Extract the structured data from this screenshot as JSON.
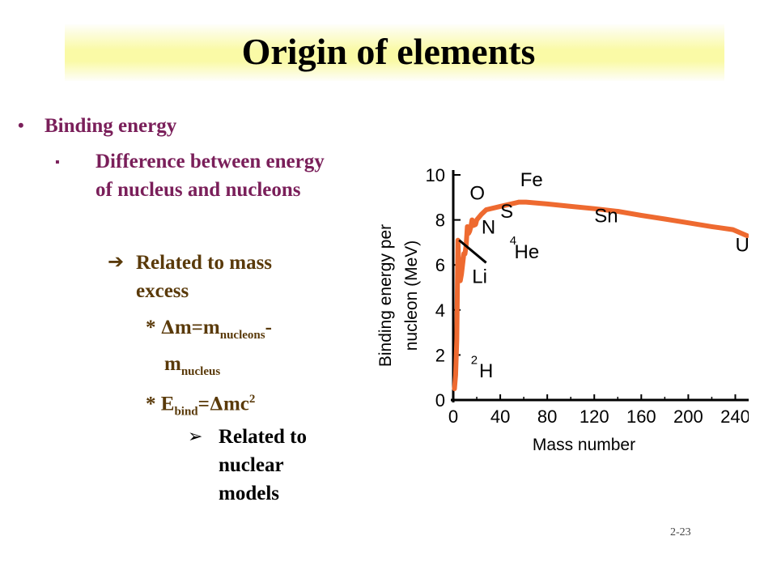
{
  "slide": {
    "title": "Origin of elements",
    "bullet1": "Binding energy",
    "bullet2": "Difference between energy of nucleus and nucleons",
    "arrow_item": "Related to mass excess",
    "eq1_star": "*",
    "eq1_delta": "Δ",
    "eq1_m": "m=m",
    "eq1_sub1": "nucleons",
    "eq1_dash": "-",
    "eq1_m2": "m",
    "eq1_sub2": "nucleus",
    "eq2_star": "*",
    "eq2_E": "E",
    "eq2_sub": "bind",
    "eq2_rest": "=",
    "eq2_delta": "Δ",
    "eq2_mc": "mc",
    "eq2_sup": "2",
    "sub_bullet": "Related to nuclear models",
    "page_number": "2-23"
  },
  "colors": {
    "curve": "#ee6a30",
    "text_primary": "#7a1f5a",
    "text_secondary": "#5a3a0a",
    "title_band": "#fafaa6"
  },
  "chart_data": {
    "type": "line",
    "xlabel": "Mass number",
    "ylabel": "Binding energy per nucleon (MeV)",
    "xlim": [
      0,
      250
    ],
    "ylim": [
      0,
      10
    ],
    "x_ticks": [
      "0",
      "40",
      "80",
      "120",
      "160",
      "200",
      "240"
    ],
    "y_ticks": [
      "0",
      "2",
      "4",
      "6",
      "8",
      "10"
    ],
    "grid": false,
    "series": [
      {
        "x": [
          1,
          2,
          3,
          4,
          5,
          6,
          7,
          9,
          10,
          11,
          12,
          13,
          14,
          15,
          16,
          17,
          19,
          20,
          24,
          28,
          32,
          40,
          56,
          62,
          80,
          100,
          120,
          140,
          160,
          180,
          200,
          220,
          238,
          250
        ],
        "y": [
          0.5,
          1.1,
          2.7,
          7.1,
          5.4,
          5.3,
          5.6,
          6.5,
          6.5,
          6.9,
          7.7,
          7.4,
          7.5,
          7.7,
          8.0,
          7.75,
          7.8,
          8.0,
          8.25,
          8.45,
          8.5,
          8.6,
          8.79,
          8.79,
          8.71,
          8.6,
          8.5,
          8.38,
          8.2,
          8.04,
          7.87,
          7.7,
          7.57,
          7.3
        ]
      },
      {
        "x": [
          5,
          28
        ],
        "y": [
          7.1,
          6.1
        ]
      }
    ],
    "annotations": [
      {
        "text": "Fe",
        "x": 57,
        "y": 9.5
      },
      {
        "text": "O",
        "x": 14,
        "y": 8.9
      },
      {
        "text": "S",
        "x": 40,
        "y": 8.1
      },
      {
        "text": "N",
        "x": 24,
        "y": 7.4
      },
      {
        "text": "Sn",
        "x": 120,
        "y": 7.9
      },
      {
        "text": "U",
        "x": 240,
        "y": 6.6
      },
      {
        "text": "4",
        "x": 48,
        "y": 6.9
      },
      {
        "text": "He",
        "x": 52,
        "y": 6.3
      },
      {
        "text": "Li",
        "x": 16,
        "y": 5.2
      },
      {
        "text": "2",
        "x": 15,
        "y": 1.6
      },
      {
        "text": "H",
        "x": 22,
        "y": 1.0
      }
    ]
  }
}
